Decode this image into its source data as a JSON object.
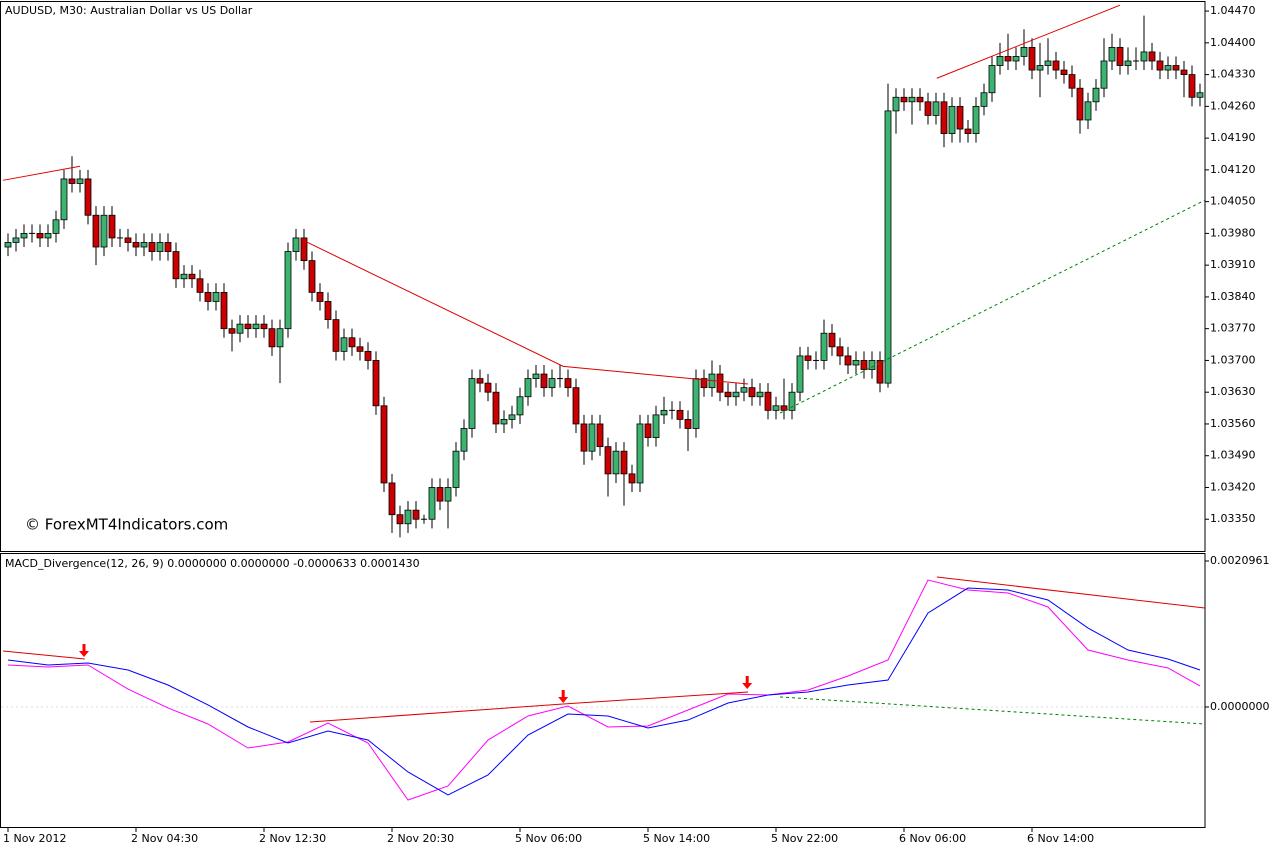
{
  "chart_data": [
    {
      "type": "candlestick",
      "title": "AUDUSD, M30:  Australian Dollar vs US Dollar",
      "watermark": "© ForexMT4Indicators.com",
      "up_color": "#3cb371",
      "down_color": "#cc0000",
      "open": [
        1.0395,
        1.0396,
        1.0397,
        1.0398,
        1.0398,
        1.0397,
        1.0398,
        1.0401,
        1.041,
        1.0409,
        1.041,
        1.0402,
        1.0395,
        1.0402,
        1.0397,
        1.0397,
        1.0396,
        1.0395,
        1.0396,
        1.0394,
        1.0396,
        1.0394,
        1.0388,
        1.0389,
        1.0388,
        1.0385,
        1.0383,
        1.0385,
        1.0377,
        1.0376,
        1.0378,
        1.0377,
        1.0378,
        1.0377,
        1.0373,
        1.0377,
        1.0394,
        1.0397,
        1.0392,
        1.0385,
        1.0383,
        1.0379,
        1.0372,
        1.0375,
        1.0373,
        1.0372,
        1.037,
        1.036,
        1.0343,
        1.0336,
        1.0334,
        1.0337,
        1.0335,
        1.0335,
        1.0342,
        1.0339,
        1.0342,
        1.035,
        1.0355,
        1.0366,
        1.0365,
        1.0363,
        1.0356,
        1.0357,
        1.0358,
        1.0362,
        1.0366,
        1.0367,
        1.0364,
        1.0366,
        1.0366,
        1.0364,
        1.0356,
        1.035,
        1.0356,
        1.0351,
        1.0345,
        1.035,
        1.0345,
        1.0343,
        1.0356,
        1.0353,
        1.0358,
        1.0359,
        1.0359,
        1.0357,
        1.0355,
        1.0366,
        1.0364,
        1.0367,
        1.0363,
        1.0362,
        1.0363,
        1.0364,
        1.0362,
        1.0363,
        1.0359,
        1.036,
        1.0359,
        1.0363,
        1.0371,
        1.037,
        1.037,
        1.0376,
        1.0373,
        1.0371,
        1.0369,
        1.037,
        1.0368,
        1.037,
        1.0365,
        1.0425,
        1.0428,
        1.0427,
        1.0428,
        1.0427,
        1.0424,
        1.0427,
        1.042,
        1.0426,
        1.0421,
        1.042,
        1.0426,
        1.0429,
        1.0435,
        1.0437,
        1.0436,
        1.0437,
        1.0439,
        1.0434,
        1.0435,
        1.0436,
        1.0434,
        1.0433,
        1.043,
        1.0423,
        1.0427,
        1.043,
        1.0436,
        1.0439,
        1.0435,
        1.0436,
        1.0436,
        1.0438,
        1.0436,
        1.0434,
        1.0435,
        1.0434,
        1.0433,
        1.0428
      ],
      "high": [
        1.0398,
        1.0399,
        1.04,
        1.04,
        1.04,
        1.04,
        1.0403,
        1.0412,
        1.0415,
        1.0412,
        1.0412,
        1.0404,
        1.0404,
        1.0404,
        1.0399,
        1.0399,
        1.0398,
        1.0398,
        1.0398,
        1.0398,
        1.0398,
        1.0396,
        1.0391,
        1.0391,
        1.039,
        1.0387,
        1.0387,
        1.0387,
        1.0379,
        1.038,
        1.038,
        1.038,
        1.038,
        1.0379,
        1.0379,
        1.0396,
        1.0399,
        1.0399,
        1.0394,
        1.0387,
        1.0385,
        1.0381,
        1.0377,
        1.0377,
        1.0375,
        1.0374,
        1.0372,
        1.0362,
        1.0345,
        1.0338,
        1.0339,
        1.0339,
        1.0336,
        1.0344,
        1.0344,
        1.0344,
        1.0352,
        1.0357,
        1.0368,
        1.0368,
        1.0367,
        1.0365,
        1.0359,
        1.036,
        1.0364,
        1.0368,
        1.0369,
        1.0369,
        1.0368,
        1.0369,
        1.0368,
        1.0366,
        1.0358,
        1.0358,
        1.0358,
        1.0353,
        1.0352,
        1.0352,
        1.0347,
        1.0358,
        1.0358,
        1.036,
        1.0362,
        1.0361,
        1.0361,
        1.0359,
        1.0368,
        1.0368,
        1.037,
        1.0369,
        1.0365,
        1.0365,
        1.0366,
        1.0366,
        1.0365,
        1.0365,
        1.0362,
        1.0366,
        1.0365,
        1.0373,
        1.0373,
        1.0372,
        1.0379,
        1.0378,
        1.0375,
        1.0373,
        1.0372,
        1.0372,
        1.0372,
        1.0372,
        1.0431,
        1.043,
        1.043,
        1.043,
        1.043,
        1.0429,
        1.0429,
        1.0429,
        1.0428,
        1.0428,
        1.0423,
        1.0428,
        1.0431,
        1.0437,
        1.044,
        1.0442,
        1.0439,
        1.0443,
        1.0441,
        1.044,
        1.0441,
        1.0438,
        1.0436,
        1.0435,
        1.0432,
        1.0429,
        1.0432,
        1.0441,
        1.0442,
        1.0441,
        1.0439,
        1.0439,
        1.0446,
        1.044,
        1.0438,
        1.0437,
        1.0437,
        1.0436,
        1.0435,
        1.0431
      ],
      "low": [
        1.0393,
        1.0394,
        1.0395,
        1.0396,
        1.0395,
        1.0395,
        1.0396,
        1.0399,
        1.0407,
        1.0407,
        1.04,
        1.0391,
        1.0393,
        1.0395,
        1.0395,
        1.0394,
        1.0393,
        1.0393,
        1.0392,
        1.0392,
        1.0392,
        1.0386,
        1.0386,
        1.0386,
        1.0383,
        1.0381,
        1.0381,
        1.0375,
        1.0372,
        1.0374,
        1.0375,
        1.0375,
        1.0375,
        1.0371,
        1.0365,
        1.0375,
        1.0392,
        1.039,
        1.0383,
        1.0381,
        1.0377,
        1.037,
        1.037,
        1.0371,
        1.037,
        1.0368,
        1.0358,
        1.0341,
        1.0332,
        1.0331,
        1.0332,
        1.0333,
        1.0334,
        1.0333,
        1.0337,
        1.0333,
        1.034,
        1.0348,
        1.0353,
        1.0363,
        1.0361,
        1.0354,
        1.0354,
        1.0355,
        1.0356,
        1.036,
        1.0364,
        1.0362,
        1.0362,
        1.0364,
        1.0362,
        1.0354,
        1.0347,
        1.0348,
        1.0349,
        1.034,
        1.0343,
        1.0338,
        1.0341,
        1.0341,
        1.0351,
        1.0351,
        1.0356,
        1.0357,
        1.0355,
        1.035,
        1.0353,
        1.0362,
        1.0362,
        1.0361,
        1.036,
        1.036,
        1.0361,
        1.036,
        1.036,
        1.0357,
        1.0357,
        1.0357,
        1.0357,
        1.0361,
        1.0368,
        1.0368,
        1.0368,
        1.0371,
        1.0369,
        1.0367,
        1.0367,
        1.0366,
        1.0366,
        1.0363,
        1.0364,
        1.042,
        1.0425,
        1.0422,
        1.0425,
        1.0422,
        1.0422,
        1.0417,
        1.0418,
        1.0418,
        1.0418,
        1.0418,
        1.0424,
        1.0427,
        1.0433,
        1.0434,
        1.0434,
        1.0435,
        1.0432,
        1.0428,
        1.0433,
        1.0432,
        1.0431,
        1.0428,
        1.042,
        1.0421,
        1.0425,
        1.0428,
        1.0434,
        1.0433,
        1.0433,
        1.0434,
        1.0434,
        1.0434,
        1.0432,
        1.0432,
        1.0432,
        1.0428,
        1.0426,
        1.0426
      ],
      "close": [
        1.0396,
        1.0397,
        1.0398,
        1.0398,
        1.0397,
        1.0398,
        1.0401,
        1.041,
        1.0409,
        1.041,
        1.0402,
        1.0395,
        1.0402,
        1.0397,
        1.0397,
        1.0396,
        1.0395,
        1.0396,
        1.0394,
        1.0396,
        1.0394,
        1.0388,
        1.0389,
        1.0388,
        1.0385,
        1.0383,
        1.0385,
        1.0377,
        1.0376,
        1.0378,
        1.0377,
        1.0378,
        1.0377,
        1.0373,
        1.0377,
        1.0394,
        1.0397,
        1.0392,
        1.0385,
        1.0383,
        1.0379,
        1.0372,
        1.0375,
        1.0373,
        1.0372,
        1.037,
        1.036,
        1.0343,
        1.0336,
        1.0334,
        1.0337,
        1.0335,
        1.0335,
        1.0342,
        1.0339,
        1.0342,
        1.035,
        1.0355,
        1.0366,
        1.0365,
        1.0363,
        1.0356,
        1.0357,
        1.0358,
        1.0362,
        1.0366,
        1.0367,
        1.0364,
        1.0366,
        1.0366,
        1.0364,
        1.0356,
        1.035,
        1.0356,
        1.0351,
        1.0345,
        1.035,
        1.0345,
        1.0343,
        1.0356,
        1.0353,
        1.0358,
        1.0359,
        1.0359,
        1.0357,
        1.0355,
        1.0366,
        1.0364,
        1.0367,
        1.0363,
        1.0362,
        1.0363,
        1.0364,
        1.0362,
        1.0363,
        1.0359,
        1.036,
        1.0359,
        1.0363,
        1.0371,
        1.037,
        1.037,
        1.0376,
        1.0373,
        1.0371,
        1.0369,
        1.037,
        1.0368,
        1.037,
        1.0365,
        1.0425,
        1.0428,
        1.0427,
        1.0428,
        1.0427,
        1.0424,
        1.0427,
        1.042,
        1.0426,
        1.0421,
        1.042,
        1.0426,
        1.0429,
        1.0435,
        1.0437,
        1.0436,
        1.0437,
        1.0439,
        1.0434,
        1.0435,
        1.0436,
        1.0434,
        1.0433,
        1.043,
        1.0423,
        1.0427,
        1.043,
        1.0436,
        1.0439,
        1.0435,
        1.0436,
        1.0436,
        1.0438,
        1.0436,
        1.0434,
        1.0435,
        1.0434,
        1.0433,
        1.0428,
        1.0429
      ],
      "ylim": [
        1.0328,
        1.0449
      ],
      "yticks": [
        {
          "value": 1.0447,
          "label": "1.04470"
        },
        {
          "value": 1.044,
          "label": "1.04400"
        },
        {
          "value": 1.0433,
          "label": "1.04330"
        },
        {
          "value": 1.0426,
          "label": "1.04260"
        },
        {
          "value": 1.0419,
          "label": "1.04190"
        },
        {
          "value": 1.0412,
          "label": "1.04120"
        },
        {
          "value": 1.0405,
          "label": "1.04050"
        },
        {
          "value": 1.0398,
          "label": "1.03980"
        },
        {
          "value": 1.0391,
          "label": "1.03910"
        },
        {
          "value": 1.0384,
          "label": "1.03840"
        },
        {
          "value": 1.0377,
          "label": "1.03770"
        },
        {
          "value": 1.037,
          "label": "1.03700"
        },
        {
          "value": 1.0363,
          "label": "1.03630"
        },
        {
          "value": 1.0356,
          "label": "1.03560"
        },
        {
          "value": 1.0349,
          "label": "1.03490"
        },
        {
          "value": 1.0342,
          "label": "1.03420"
        },
        {
          "value": 1.0335,
          "label": "1.03350"
        }
      ],
      "lines": [
        {
          "color": "#e00000",
          "dashed": false,
          "x": [
            -0.625,
            9
          ],
          "values": [
            1.04097,
            1.04128
          ]
        },
        {
          "color": "#e00000",
          "dashed": false,
          "x": [
            37.1,
            69.4,
            92.5
          ],
          "values": [
            1.03963,
            1.03687,
            1.03648
          ]
        },
        {
          "color": "#e00000",
          "dashed": false,
          "x": [
            116.1,
            139
          ],
          "values": [
            1.04322,
            1.04483
          ]
        },
        {
          "color": "#008000",
          "dashed": true,
          "x": [
            96.5,
            149.6
          ],
          "values": [
            1.03584,
            1.04053
          ]
        }
      ]
    },
    {
      "type": "line",
      "title": "MACD_Divergence(12, 26, 9) 0.0000000 0.0000000 -0.0000633 0.0001430",
      "x": [
        0,
        5,
        10,
        15,
        20,
        25,
        30,
        35,
        40,
        45,
        50,
        55,
        60,
        65,
        70,
        75,
        80,
        85,
        90,
        95,
        100,
        105,
        110,
        115,
        120,
        125,
        130,
        135,
        140,
        145,
        149
      ],
      "series": [
        {
          "color": "#ff00ff",
          "values": [
            0.000603,
            0.000574,
            0.000603,
            0.000258,
            -1.4e-05,
            -0.000244,
            -0.000589,
            -0.000502,
            -0.00023,
            -0.000517,
            -0.001335,
            -0.001134,
            -0.000474,
            -0.000129,
            1.4e-05,
            -0.000287,
            -0.000273,
            -4.3e-05,
            0.000187,
            0.000172,
            0.000244,
            0.000445,
            0.000675,
            0.001823,
            0.00168,
            0.001637,
            0.001436,
            0.000818,
            0.000675,
            0.00056,
            0.000302
          ]
        },
        {
          "color": "#0000ff",
          "values": [
            0.000675,
            0.000603,
            0.000632,
            0.000531,
            0.000316,
            2.9e-05,
            -0.000287,
            -0.000517,
            -0.000345,
            -0.000474,
            -0.000933,
            -0.001263,
            -0.000976,
            -0.000402,
            -0.000101,
            -0.000129,
            -0.000301,
            -0.000187,
            5.7e-05,
            0.000172,
            0.000215,
            0.000316,
            0.000388,
            0.00135,
            0.001708,
            0.00168,
            0.001536,
            0.001134,
            0.000818,
            0.000689,
            0.000531
          ]
        }
      ],
      "ylim": [
        -0.0017372,
        0.002211
      ],
      "yticks": [
        0.0020961,
        {
          "value": 0,
          "label": "0.0000000"
        }
      ],
      "zero_line": true,
      "lines": [
        {
          "color": "#e00000",
          "dashed": false,
          "x": [
            -0.625,
            9.6
          ],
          "values": [
            0.000804,
            0.000689
          ]
        },
        {
          "color": "#e00000",
          "dashed": false,
          "x": [
            37.75,
            69.4,
            92.5
          ],
          "values": [
            -0.000215,
            4.3e-05,
            0.000215
          ]
        },
        {
          "color": "#e00000",
          "dashed": false,
          "x": [
            116.1,
            149.6
          ],
          "values": [
            0.001866,
            0.001421
          ]
        },
        {
          "color": "#008000",
          "dashed": true,
          "x": [
            96.5,
            149.6
          ],
          "values": [
            0.000144,
            -0.000244
          ]
        }
      ],
      "arrows": {
        "color": "#ff0000",
        "x": [
          9.5,
          69.4,
          92.4
        ],
        "values": [
          0.000718,
          5.7e-05,
          0.000258
        ]
      },
      "xticks": [
        {
          "value": 0,
          "label": "1 Nov 2012"
        },
        {
          "value": 16,
          "label": "2 Nov 04:30"
        },
        {
          "value": 32,
          "label": "2 Nov 12:30"
        },
        {
          "value": 48,
          "label": "2 Nov 20:30"
        },
        {
          "value": 64,
          "label": "5 Nov 06:00"
        },
        {
          "value": 80,
          "label": "5 Nov 14:00"
        },
        {
          "value": 96,
          "label": "5 Nov 22:00"
        },
        {
          "value": 112,
          "label": "6 Nov 06:00"
        },
        {
          "value": 128,
          "label": "6 Nov 14:00"
        }
      ]
    }
  ]
}
